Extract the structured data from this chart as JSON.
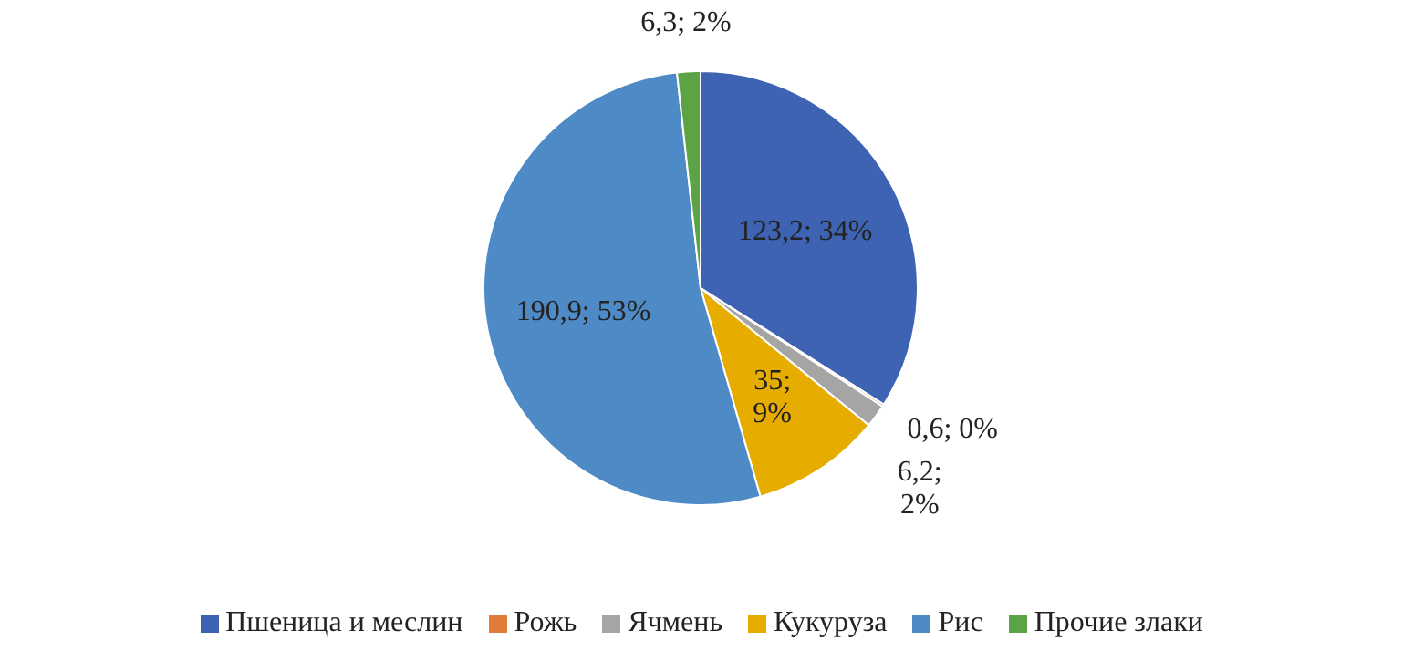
{
  "chart_data": {
    "type": "pie",
    "categories": [
      "Пшеница и меслин",
      "Рожь",
      "Ячмень",
      "Кукуруза",
      "Рис",
      "Прочие злаки"
    ],
    "values": [
      123.2,
      0.6,
      6.2,
      35,
      190.9,
      6.3
    ],
    "colors": [
      "#3d63b2",
      "#e07b39",
      "#a5a5a5",
      "#e6ac00",
      "#4e8bc6",
      "#5ba345"
    ],
    "value_labels": [
      "123,2; 34%",
      "0,6; 0%",
      "6,2; 2%",
      "35; 9%",
      "190,9; 53%",
      "6,3; 2%"
    ],
    "legend": "bottom"
  }
}
